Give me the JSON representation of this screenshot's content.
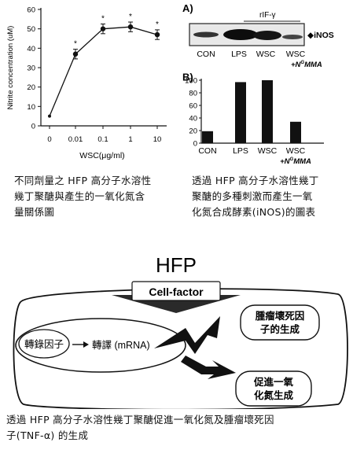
{
  "chart_data": [
    {
      "type": "line",
      "ylabel": "Nitrite concentration (uM)",
      "xlabel": "WSC(μg/ml)",
      "categories": [
        "0",
        "0.01",
        "0.1",
        "1",
        "10"
      ],
      "values": [
        5,
        37,
        50,
        51,
        47
      ],
      "errors": [
        0,
        2.5,
        2.5,
        2.5,
        2.5
      ],
      "significance_marks": [
        "",
        "*",
        "*",
        "*",
        "*"
      ],
      "ylim": [
        0,
        60
      ],
      "yticks": [
        "0",
        "10",
        "20",
        "30",
        "40",
        "50",
        "60"
      ],
      "xtick_labels_printed": [
        "0",
        "0.01",
        "0.1",
        "1",
        "10"
      ]
    },
    {
      "type": "bar",
      "panel_label": "B)",
      "categories": [
        "CON",
        "LPS",
        "WSC",
        "WSC"
      ],
      "category_suffix": "+N^G MMA",
      "values": [
        19,
        97,
        100,
        34
      ],
      "ylim": [
        0,
        100
      ],
      "yticks": [
        "0",
        "20",
        "40",
        "60",
        "80",
        "100"
      ]
    }
  ],
  "blot": {
    "panel_label": "A)",
    "treatment_label": "rIF-γ",
    "band_label": "◆iNOS",
    "lanes": [
      "CON",
      "LPS",
      "WSC",
      "WSC"
    ],
    "lane_suffix": "+N^G MMA"
  },
  "captions": {
    "left": [
      "不同劑量之 HFP 高分子水溶性",
      "幾丁聚醣與產生的一氧化氮含",
      "量關係圖"
    ],
    "right": [
      "透過 HFP 高分子水溶性幾丁",
      "聚醣的多種刺激而產生一氧",
      "化氮合成酵素(iNOS)的圖表"
    ],
    "bottom": [
      "透過 HFP 高分子水溶性幾丁聚醣促進一氧化氮及腫瘤壞死因",
      "子(TNF-α) 的生成"
    ]
  },
  "diagram": {
    "title": "HFP",
    "factor_label": "Cell-factor",
    "transcription_factor": "轉錄因子",
    "transcription_text": "轉譯 (mRNA)",
    "outcome_top": [
      "腫瘤壞死因",
      "子的生成"
    ],
    "outcome_bottom": [
      "促進一氧",
      "化氮生成"
    ]
  }
}
